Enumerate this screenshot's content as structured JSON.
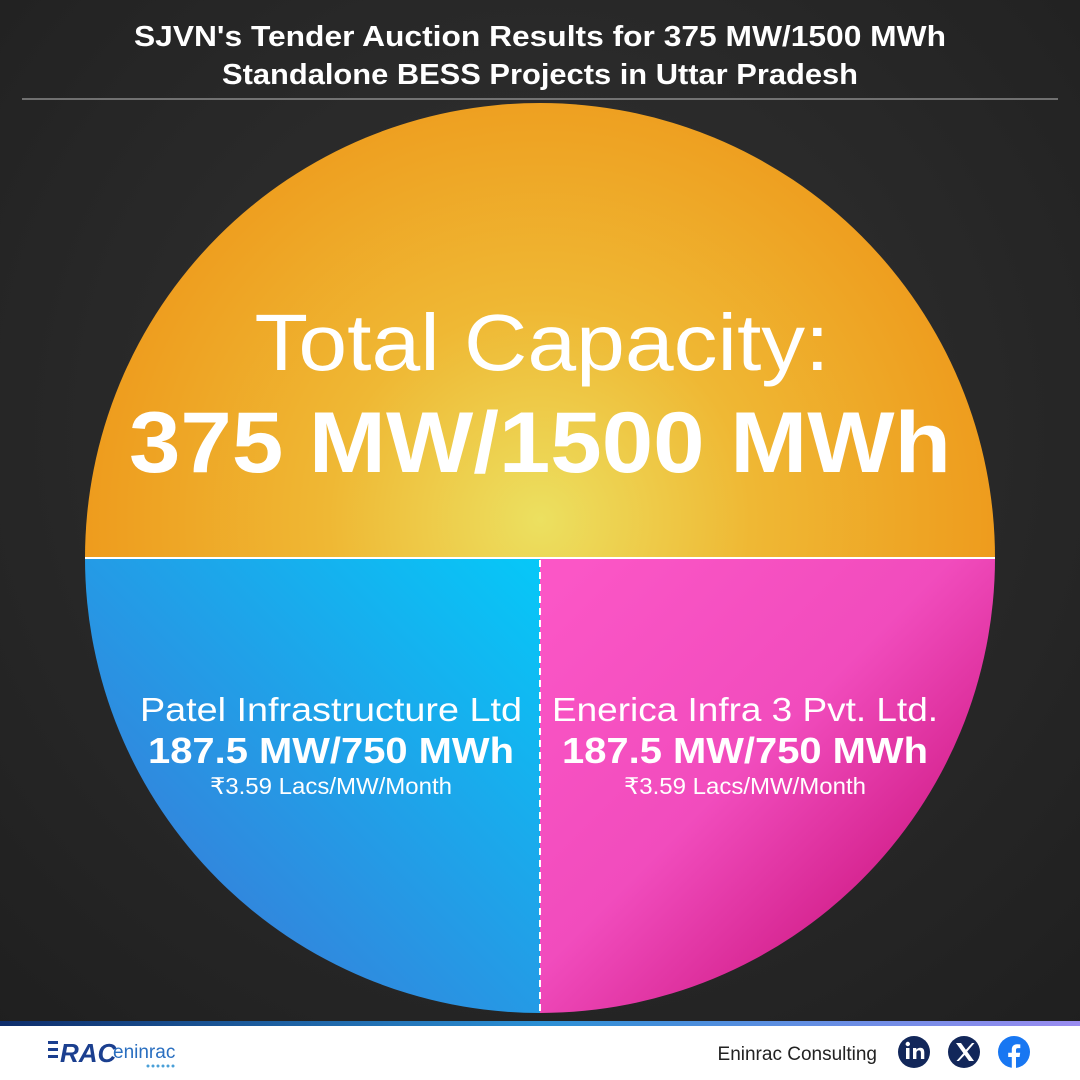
{
  "header": {
    "title_line1": "SJVN's Tender Auction Results for 375 MW/1500 MWh",
    "title_line2": "Standalone BESS Projects in Uttar Pradesh"
  },
  "summary": {
    "label": "Total Capacity:",
    "value": "375 MW/1500 MWh"
  },
  "segments": [
    {
      "name": "Patel Infrastructure Ltd",
      "capacity": "187.5 MW/750 MWh",
      "tariff": "₹3.59 Lacs/MW/Month"
    },
    {
      "name": "Enerica Infra 3 Pvt. Ltd.",
      "capacity": "187.5 MW/750 MWh",
      "tariff": "₹3.59 Lacs/MW/Month"
    }
  ],
  "footer": {
    "logo_left": "RAC",
    "logo_right": "eninrac",
    "brand": "Eninrac Consulting"
  }
}
